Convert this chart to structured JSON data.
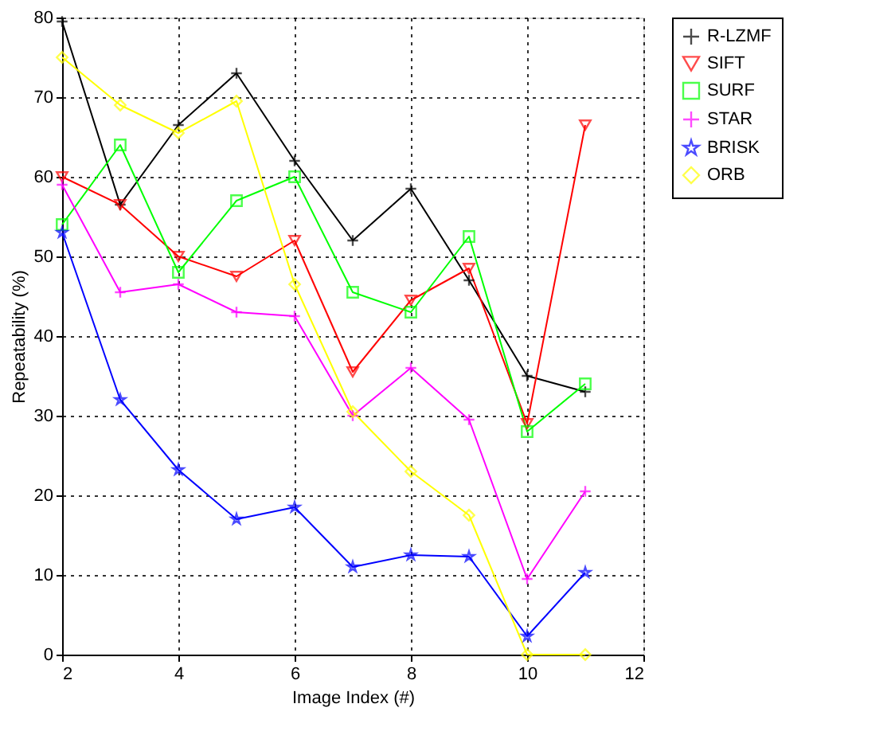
{
  "chart_data": {
    "type": "line",
    "xlabel": "Image Index (#)",
    "ylabel": "Repeatability (%)",
    "x": [
      2,
      3,
      4,
      5,
      6,
      7,
      8,
      9,
      10,
      11
    ],
    "series": [
      {
        "name": "R-LZMF",
        "color": "#000000",
        "marker": "cross",
        "values": [
          79.5,
          56.5,
          66.5,
          73,
          62,
          52,
          58.5,
          47,
          35,
          33
        ]
      },
      {
        "name": "SIFT",
        "color": "#ff0000",
        "marker": "triangle",
        "values": [
          60,
          56.5,
          50,
          47.5,
          52,
          35.5,
          44.5,
          48.5,
          29,
          66.5
        ]
      },
      {
        "name": "SURF",
        "color": "#00ff00",
        "marker": "square",
        "values": [
          54,
          64,
          48,
          57,
          60,
          45.5,
          43,
          52.5,
          28,
          34
        ]
      },
      {
        "name": "STAR",
        "color": "#ff00ff",
        "marker": "cross",
        "values": [
          59,
          45.5,
          46.5,
          43,
          42.5,
          30,
          36,
          29.5,
          9.5,
          20.5
        ]
      },
      {
        "name": "BRISK",
        "color": "#0000ff",
        "marker": "star",
        "values": [
          53,
          32,
          23.2,
          17,
          18.5,
          11,
          12.5,
          12.3,
          2.3,
          10.3
        ]
      },
      {
        "name": "ORB",
        "color": "#ffff00",
        "marker": "diamond",
        "values": [
          75,
          69,
          65.5,
          69.5,
          46.5,
          30.5,
          23,
          17.5,
          0,
          0
        ]
      }
    ],
    "xlim": [
      2,
      12
    ],
    "xticks": [
      2,
      4,
      6,
      8,
      10,
      12
    ],
    "ylim": [
      0,
      80
    ],
    "yticks": [
      0,
      10,
      20,
      30,
      40,
      50,
      60,
      70,
      80
    ],
    "grid": true,
    "legend": "top right",
    "line_style": "solid"
  }
}
